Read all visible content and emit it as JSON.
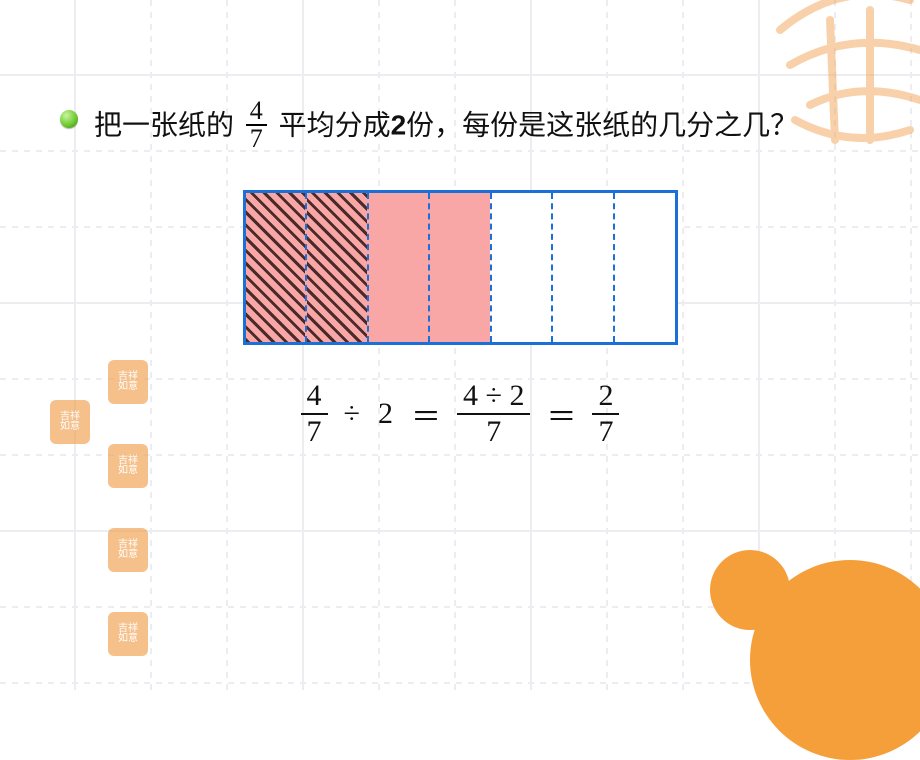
{
  "question": {
    "pre": "把一张纸的",
    "frac_num": "4",
    "frac_den": "7",
    "mid_a": " 平均分成",
    "bold_num": "2",
    "mid_b": "份，每份是这张纸的几分之几？"
  },
  "diagram": {
    "segments": 7,
    "hatched_count": 2,
    "pink_count": 4,
    "border_color": "#1a6fd8",
    "pink_fill": "#f8a6a6",
    "hatch_color": "#4b2a2a"
  },
  "equation": {
    "lhs": {
      "num": "4",
      "den": "7"
    },
    "divisor": "2",
    "mid": {
      "num": "4 ÷ 2",
      "den": "7"
    },
    "rhs": {
      "num": "2",
      "den": "7"
    },
    "div_sym": "÷",
    "eq_sym": "＝"
  },
  "decor": {
    "orange": "#f59f3b",
    "seal_text_top": "吉祥",
    "seal_text_bot": "如意"
  }
}
